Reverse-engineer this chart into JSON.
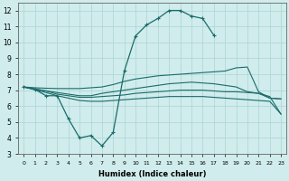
{
  "background_color": "#d0ecec",
  "grid_color": "#acd4d4",
  "line_color": "#1a6b6b",
  "xlim": [
    -0.5,
    23.5
  ],
  "ylim": [
    3,
    12.5
  ],
  "xlabel": "Humidex (Indice chaleur)",
  "xticks": [
    0,
    1,
    2,
    3,
    4,
    5,
    6,
    7,
    8,
    9,
    10,
    11,
    12,
    13,
    14,
    15,
    16,
    17,
    18,
    19,
    20,
    21,
    22,
    23
  ],
  "yticks": [
    3,
    4,
    5,
    6,
    7,
    8,
    9,
    10,
    11,
    12
  ],
  "curve_with_markers": {
    "x": [
      0,
      1,
      2,
      3,
      4,
      5,
      6,
      7,
      8,
      9,
      10,
      11,
      12,
      13,
      14,
      15,
      16,
      17
    ],
    "y": [
      7.2,
      7.05,
      6.65,
      6.65,
      5.2,
      4.0,
      4.15,
      3.5,
      4.35,
      8.2,
      10.4,
      11.1,
      11.5,
      12.0,
      12.0,
      11.65,
      11.5,
      10.45
    ]
  },
  "line_upper": {
    "x": [
      0,
      1,
      2,
      3,
      4,
      5,
      6,
      7,
      8,
      9,
      10,
      11,
      12,
      13,
      14,
      15,
      16,
      17,
      18,
      19,
      20,
      21,
      22,
      23
    ],
    "y": [
      7.2,
      7.15,
      7.12,
      7.1,
      7.1,
      7.1,
      7.15,
      7.2,
      7.35,
      7.55,
      7.7,
      7.8,
      7.9,
      7.95,
      8.0,
      8.05,
      8.1,
      8.15,
      8.2,
      8.4,
      8.45,
      6.9,
      6.5,
      6.45
    ]
  },
  "line_mid1": {
    "x": [
      0,
      2,
      3,
      4,
      5,
      6,
      7,
      8,
      9,
      10,
      11,
      12,
      13,
      14,
      15,
      16,
      17,
      18,
      19,
      20,
      21,
      22,
      23
    ],
    "y": [
      7.2,
      6.85,
      6.65,
      6.5,
      6.35,
      6.3,
      6.3,
      6.35,
      6.4,
      6.45,
      6.5,
      6.55,
      6.6,
      6.6,
      6.6,
      6.6,
      6.55,
      6.5,
      6.45,
      6.4,
      6.35,
      6.3,
      5.5
    ]
  },
  "line_mid2": {
    "x": [
      0,
      2,
      3,
      4,
      5,
      6,
      7,
      8,
      9,
      10,
      11,
      12,
      13,
      14,
      15,
      16,
      17,
      18,
      19,
      20,
      21,
      22,
      23
    ],
    "y": [
      7.2,
      6.95,
      6.75,
      6.65,
      6.55,
      6.55,
      6.6,
      6.65,
      6.7,
      6.8,
      6.85,
      6.9,
      6.95,
      7.0,
      7.0,
      7.0,
      6.95,
      6.9,
      6.9,
      6.85,
      6.8,
      6.5,
      6.45
    ]
  },
  "line_mid3": {
    "x": [
      0,
      2,
      3,
      4,
      5,
      6,
      7,
      8,
      9,
      10,
      11,
      12,
      13,
      14,
      15,
      16,
      17,
      18,
      19,
      20,
      21,
      22,
      23
    ],
    "y": [
      7.2,
      6.95,
      6.85,
      6.75,
      6.65,
      6.65,
      6.8,
      6.9,
      7.0,
      7.1,
      7.2,
      7.3,
      7.4,
      7.45,
      7.5,
      7.45,
      7.4,
      7.3,
      7.2,
      6.9,
      6.8,
      6.6,
      5.5
    ]
  }
}
